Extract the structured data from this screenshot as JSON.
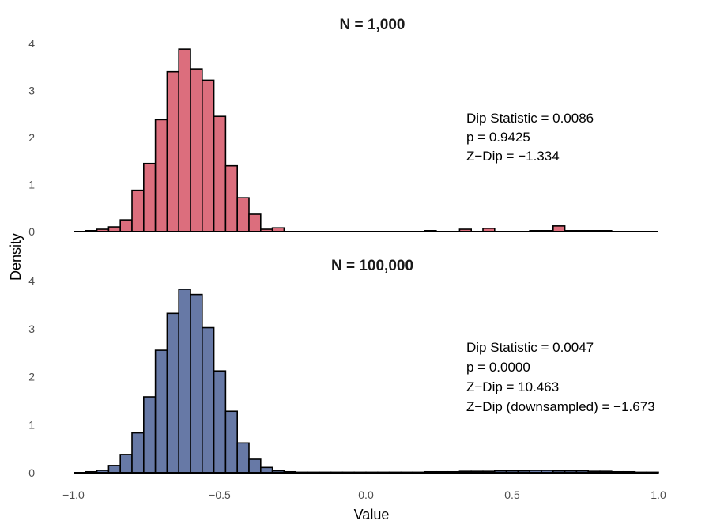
{
  "chart_data": {
    "type": "histogram",
    "xlabel": "Value",
    "ylabel": "Density",
    "xlim": [
      -1.0,
      1.0
    ],
    "x_ticks": [
      -1.0,
      -0.5,
      0.0,
      0.5,
      1.0
    ],
    "x_tick_labels": [
      "−1.0",
      "−0.5",
      "0.0",
      "0.5",
      "1.0"
    ],
    "bin_width": 0.04,
    "panels": [
      {
        "title": "N = 1,000",
        "fill_color": "#DC6E7D",
        "ylim": [
          0,
          4
        ],
        "y_ticks": [
          0,
          1,
          2,
          3,
          4
        ],
        "stats": [
          "Dip Statistic = 0.0086",
          "p = 0.9425",
          "Z−Dip = −1.334"
        ],
        "bins": [
          {
            "x": -0.96,
            "y": 0.02
          },
          {
            "x": -0.92,
            "y": 0.05
          },
          {
            "x": -0.88,
            "y": 0.1
          },
          {
            "x": -0.84,
            "y": 0.25
          },
          {
            "x": -0.8,
            "y": 0.88
          },
          {
            "x": -0.76,
            "y": 1.45
          },
          {
            "x": -0.72,
            "y": 2.38
          },
          {
            "x": -0.68,
            "y": 3.4
          },
          {
            "x": -0.64,
            "y": 3.88
          },
          {
            "x": -0.6,
            "y": 3.46
          },
          {
            "x": -0.56,
            "y": 3.22
          },
          {
            "x": -0.52,
            "y": 2.45
          },
          {
            "x": -0.48,
            "y": 1.4
          },
          {
            "x": -0.44,
            "y": 0.72
          },
          {
            "x": -0.4,
            "y": 0.37
          },
          {
            "x": -0.36,
            "y": 0.05
          },
          {
            "x": -0.32,
            "y": 0.08
          },
          {
            "x": 0.2,
            "y": 0.02
          },
          {
            "x": 0.32,
            "y": 0.05
          },
          {
            "x": 0.4,
            "y": 0.07
          },
          {
            "x": 0.56,
            "y": 0.02
          },
          {
            "x": 0.6,
            "y": 0.02
          },
          {
            "x": 0.64,
            "y": 0.12
          },
          {
            "x": 0.68,
            "y": 0.02
          },
          {
            "x": 0.72,
            "y": 0.02
          },
          {
            "x": 0.76,
            "y": 0.02
          },
          {
            "x": 0.8,
            "y": 0.02
          }
        ]
      },
      {
        "title": "N = 100,000",
        "fill_color": "#6779A6",
        "ylim": [
          0,
          4
        ],
        "y_ticks": [
          0,
          1,
          2,
          3,
          4
        ],
        "stats": [
          "Dip Statistic = 0.0047",
          "p = 0.0000",
          "Z−Dip = 10.463",
          "Z−Dip (downsampled) = −1.673"
        ],
        "bins": [
          {
            "x": -0.96,
            "y": 0.02
          },
          {
            "x": -0.92,
            "y": 0.05
          },
          {
            "x": -0.88,
            "y": 0.15
          },
          {
            "x": -0.84,
            "y": 0.38
          },
          {
            "x": -0.8,
            "y": 0.83
          },
          {
            "x": -0.76,
            "y": 1.58
          },
          {
            "x": -0.72,
            "y": 2.55
          },
          {
            "x": -0.68,
            "y": 3.32
          },
          {
            "x": -0.64,
            "y": 3.82
          },
          {
            "x": -0.6,
            "y": 3.71
          },
          {
            "x": -0.56,
            "y": 3.02
          },
          {
            "x": -0.52,
            "y": 2.12
          },
          {
            "x": -0.48,
            "y": 1.28
          },
          {
            "x": -0.44,
            "y": 0.62
          },
          {
            "x": -0.4,
            "y": 0.28
          },
          {
            "x": -0.36,
            "y": 0.11
          },
          {
            "x": -0.32,
            "y": 0.04
          },
          {
            "x": -0.28,
            "y": 0.02
          },
          {
            "x": -0.24,
            "y": 0.01
          },
          {
            "x": -0.2,
            "y": 0.01
          },
          {
            "x": -0.16,
            "y": 0.01
          },
          {
            "x": -0.12,
            "y": 0.01
          },
          {
            "x": -0.08,
            "y": 0.01
          },
          {
            "x": -0.04,
            "y": 0.01
          },
          {
            "x": 0.0,
            "y": 0.01
          },
          {
            "x": 0.04,
            "y": 0.01
          },
          {
            "x": 0.08,
            "y": 0.01
          },
          {
            "x": 0.12,
            "y": 0.01
          },
          {
            "x": 0.16,
            "y": 0.01
          },
          {
            "x": 0.2,
            "y": 0.02
          },
          {
            "x": 0.24,
            "y": 0.02
          },
          {
            "x": 0.28,
            "y": 0.02
          },
          {
            "x": 0.32,
            "y": 0.03
          },
          {
            "x": 0.36,
            "y": 0.03
          },
          {
            "x": 0.4,
            "y": 0.03
          },
          {
            "x": 0.44,
            "y": 0.04
          },
          {
            "x": 0.48,
            "y": 0.04
          },
          {
            "x": 0.52,
            "y": 0.04
          },
          {
            "x": 0.56,
            "y": 0.05
          },
          {
            "x": 0.6,
            "y": 0.05
          },
          {
            "x": 0.64,
            "y": 0.04
          },
          {
            "x": 0.68,
            "y": 0.04
          },
          {
            "x": 0.72,
            "y": 0.04
          },
          {
            "x": 0.76,
            "y": 0.03
          },
          {
            "x": 0.8,
            "y": 0.03
          },
          {
            "x": 0.84,
            "y": 0.02
          },
          {
            "x": 0.88,
            "y": 0.02
          },
          {
            "x": 0.92,
            "y": 0.01
          },
          {
            "x": 0.96,
            "y": 0.01
          }
        ]
      }
    ]
  }
}
